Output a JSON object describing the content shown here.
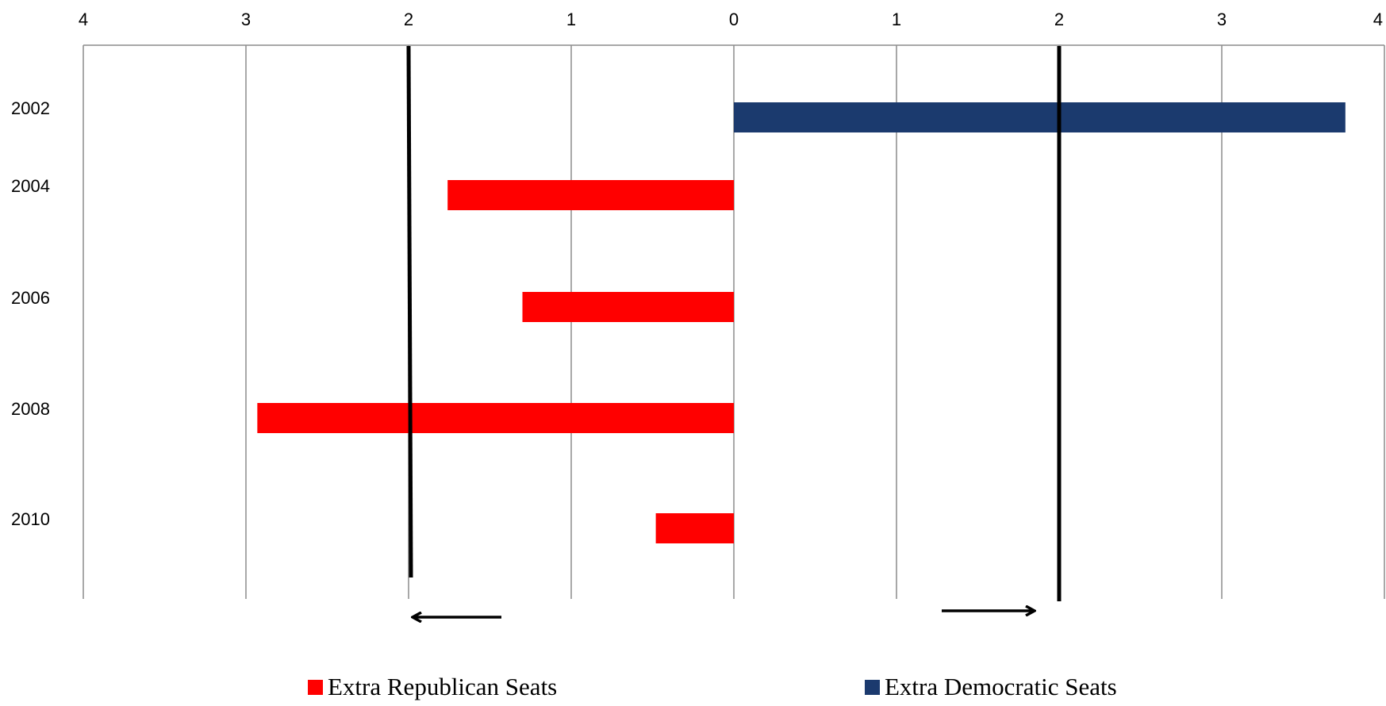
{
  "chart_data": {
    "type": "bar",
    "orientation": "horizontal",
    "categories": [
      "2002",
      "2004",
      "2006",
      "2008",
      "2010"
    ],
    "series": [
      {
        "name": "Extra Republican Seats",
        "color": "#ff0000",
        "values": [
          0,
          1.76,
          1.3,
          2.93,
          0.48
        ]
      },
      {
        "name": "Extra Democratic Seats",
        "color": "#1b3a6e",
        "values": [
          3.76,
          0,
          0,
          0,
          0
        ]
      }
    ],
    "x_ticks": [
      "4",
      "3",
      "2",
      "1",
      "0",
      "1",
      "2",
      "3",
      "4"
    ],
    "xlim": [
      -4,
      4
    ],
    "grid": true,
    "reference_lines": [
      -2,
      2
    ],
    "arrows": [
      "left",
      "right"
    ],
    "legend_position": "bottom",
    "title": "",
    "xlabel": "",
    "ylabel": ""
  }
}
